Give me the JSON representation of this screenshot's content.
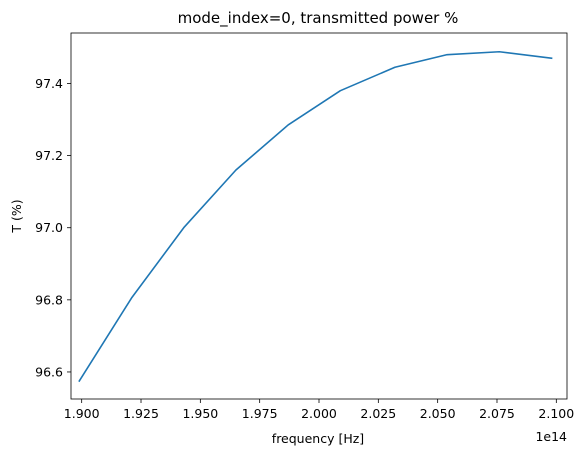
{
  "chart_data": {
    "type": "line",
    "title": "mode_index=0, transmitted power %",
    "xlabel": "frequency [Hz]",
    "ylabel": "T (%)",
    "x_offset_label": "1e14",
    "xlim": [
      1.8955,
      2.1045
    ],
    "ylim": [
      96.525,
      97.54
    ],
    "x_ticks": [
      1.9,
      1.925,
      1.95,
      1.975,
      2.0,
      2.025,
      2.05,
      2.075,
      2.1
    ],
    "x_tick_labels": [
      "1.900",
      "1.925",
      "1.950",
      "1.975",
      "2.000",
      "2.025",
      "2.050",
      "2.075",
      "2.100"
    ],
    "y_ticks": [
      96.6,
      96.8,
      97.0,
      97.2,
      97.4
    ],
    "y_tick_labels": [
      "96.6",
      "96.8",
      "97.0",
      "97.2",
      "97.4"
    ],
    "grid": false,
    "series": [
      {
        "color": "#1f77b4",
        "x": [
          1.899,
          1.921,
          1.943,
          1.965,
          1.987,
          2.009,
          2.032,
          2.054,
          2.076,
          2.098
        ],
        "y": [
          96.575,
          96.805,
          97.0,
          97.16,
          97.285,
          97.38,
          97.445,
          97.48,
          97.488,
          97.47
        ]
      }
    ]
  }
}
